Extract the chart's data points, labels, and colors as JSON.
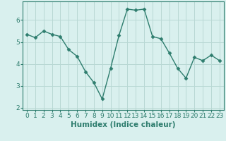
{
  "x": [
    0,
    1,
    2,
    3,
    4,
    5,
    6,
    7,
    8,
    9,
    10,
    11,
    12,
    13,
    14,
    15,
    16,
    17,
    18,
    19,
    20,
    21,
    22,
    23
  ],
  "y": [
    5.35,
    5.2,
    5.5,
    5.35,
    5.25,
    4.65,
    4.35,
    3.65,
    3.15,
    2.4,
    3.8,
    5.3,
    6.5,
    6.45,
    6.5,
    5.25,
    5.15,
    4.5,
    3.8,
    3.35,
    4.3,
    4.15,
    4.4,
    4.15
  ],
  "xlabel": "Humidex (Indice chaleur)",
  "line_color": "#2e7d6e",
  "marker": "D",
  "marker_size": 2.5,
  "bg_color": "#d9f0ee",
  "grid_color": "#b8d8d4",
  "xlim": [
    -0.5,
    23.5
  ],
  "ylim": [
    1.9,
    6.85
  ],
  "yticks": [
    2,
    3,
    4,
    5,
    6
  ],
  "xticks": [
    0,
    1,
    2,
    3,
    4,
    5,
    6,
    7,
    8,
    9,
    10,
    11,
    12,
    13,
    14,
    15,
    16,
    17,
    18,
    19,
    20,
    21,
    22,
    23
  ],
  "xtick_labels": [
    "0",
    "1",
    "2",
    "3",
    "4",
    "5",
    "6",
    "7",
    "8",
    "9",
    "10",
    "11",
    "12",
    "13",
    "14",
    "15",
    "16",
    "17",
    "18",
    "19",
    "20",
    "21",
    "22",
    "23"
  ],
  "xlabel_fontsize": 7.5,
  "tick_fontsize": 6.5
}
